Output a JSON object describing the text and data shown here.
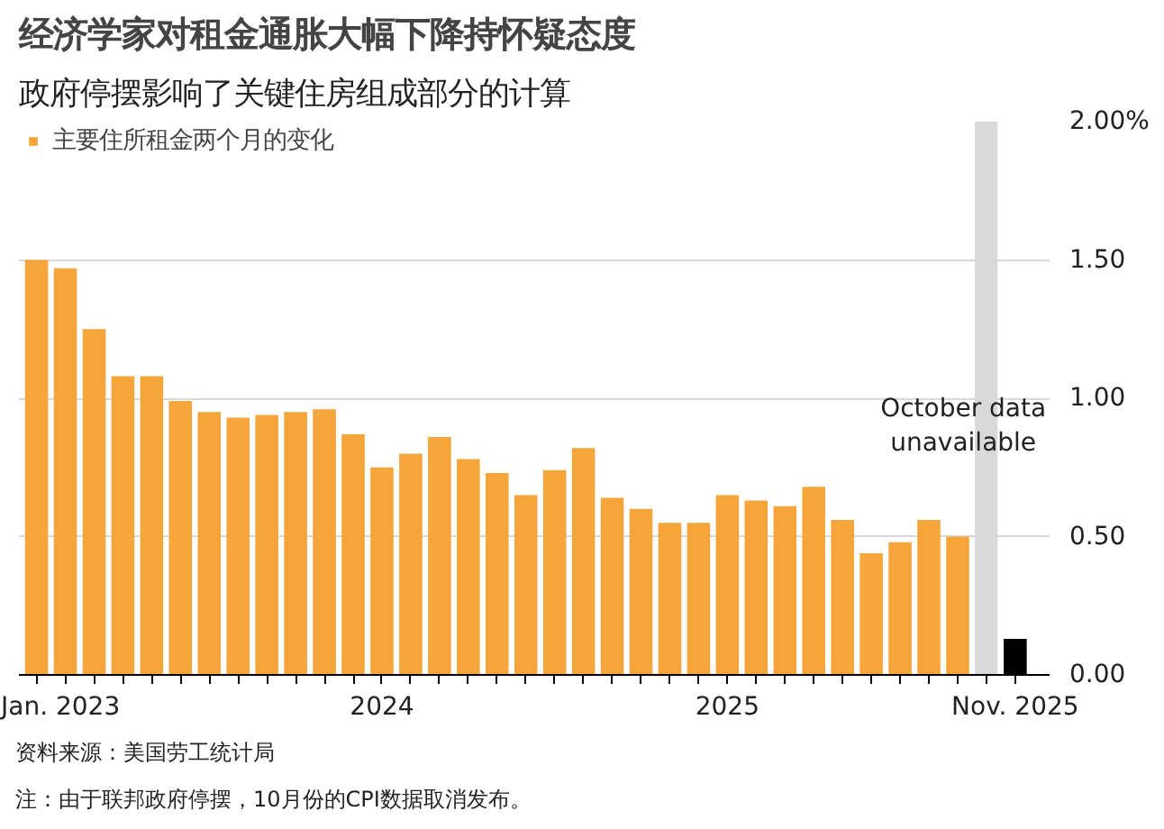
{
  "chart_data": {
    "type": "bar",
    "title": "经济学家对租金通胀大幅下降持怀疑态度",
    "subtitle": "政府停摆影响了关键住房组成部分的计算",
    "x": [
      "2023-01",
      "2023-02",
      "2023-03",
      "2023-04",
      "2023-05",
      "2023-06",
      "2023-07",
      "2023-08",
      "2023-09",
      "2023-10",
      "2023-11",
      "2023-12",
      "2024-01",
      "2024-02",
      "2024-03",
      "2024-04",
      "2024-05",
      "2024-06",
      "2024-07",
      "2024-08",
      "2024-09",
      "2024-10",
      "2024-11",
      "2024-12",
      "2025-01",
      "2025-02",
      "2025-03",
      "2025-04",
      "2025-05",
      "2025-06",
      "2025-07",
      "2025-08",
      "2025-09",
      "2025-10",
      "2025-11"
    ],
    "series": [
      {
        "name": "主要住所租金两个月的变化",
        "color": "#f5a53a",
        "values": [
          1.5,
          1.47,
          1.25,
          1.08,
          1.08,
          0.99,
          0.95,
          0.93,
          0.94,
          0.95,
          0.96,
          0.87,
          0.75,
          0.8,
          0.86,
          0.78,
          0.73,
          0.65,
          0.74,
          0.82,
          0.64,
          0.6,
          0.55,
          0.55,
          0.65,
          0.63,
          0.61,
          0.68,
          0.56,
          0.44,
          0.48,
          0.56,
          0.5,
          null,
          0.13
        ],
        "colors": [
          "#f5a53a",
          "#f5a53a",
          "#f5a53a",
          "#f5a53a",
          "#f5a53a",
          "#f5a53a",
          "#f5a53a",
          "#f5a53a",
          "#f5a53a",
          "#f5a53a",
          "#f5a53a",
          "#f5a53a",
          "#f5a53a",
          "#f5a53a",
          "#f5a53a",
          "#f5a53a",
          "#f5a53a",
          "#f5a53a",
          "#f5a53a",
          "#f5a53a",
          "#f5a53a",
          "#f5a53a",
          "#f5a53a",
          "#f5a53a",
          "#f5a53a",
          "#f5a53a",
          "#f5a53a",
          "#f5a53a",
          "#f5a53a",
          "#f5a53a",
          "#f5a53a",
          "#f5a53a",
          "#f5a53a",
          "#f5a53a",
          "#000000"
        ]
      }
    ],
    "ylim": [
      0,
      2.0
    ],
    "yticks": [
      {
        "value": 0,
        "label": "0.00"
      },
      {
        "value": 0.5,
        "label": "0.50"
      },
      {
        "value": 1.0,
        "label": "1.00"
      },
      {
        "value": 1.5,
        "label": "1.50"
      },
      {
        "value": 2.0,
        "label": "2.00%"
      }
    ],
    "xticks": [
      {
        "value": "2023-01",
        "label": "Jan. 2023"
      },
      {
        "value": "2023-02",
        "label": null
      },
      {
        "value": "2023-03",
        "label": null
      },
      {
        "value": "2023-04",
        "label": null
      },
      {
        "value": "2023-05",
        "label": null
      },
      {
        "value": "2023-06",
        "label": null
      },
      {
        "value": "2023-07",
        "label": null
      },
      {
        "value": "2023-08",
        "label": null
      },
      {
        "value": "2023-09",
        "label": null
      },
      {
        "value": "2023-10",
        "label": null
      },
      {
        "value": "2023-11",
        "label": null
      },
      {
        "value": "2023-12",
        "label": null
      },
      {
        "value": "2024-01",
        "label": "2024"
      },
      {
        "value": "2024-02",
        "label": null
      },
      {
        "value": "2024-03",
        "label": null
      },
      {
        "value": "2024-04",
        "label": null
      },
      {
        "value": "2024-05",
        "label": null
      },
      {
        "value": "2024-06",
        "label": null
      },
      {
        "value": "2024-07",
        "label": null
      },
      {
        "value": "2024-08",
        "label": null
      },
      {
        "value": "2024-09",
        "label": null
      },
      {
        "value": "2024-10",
        "label": null
      },
      {
        "value": "2024-11",
        "label": null
      },
      {
        "value": "2024-12",
        "label": null
      },
      {
        "value": "2025-01",
        "label": "2025"
      },
      {
        "value": "2025-02",
        "label": null
      },
      {
        "value": "2025-03",
        "label": null
      },
      {
        "value": "2025-04",
        "label": null
      },
      {
        "value": "2025-05",
        "label": null
      },
      {
        "value": "2025-06",
        "label": null
      },
      {
        "value": "2025-07",
        "label": null
      },
      {
        "value": "2025-08",
        "label": null
      },
      {
        "value": "2025-09",
        "label": null
      },
      {
        "value": "2025-10",
        "label": null
      },
      {
        "value": "2025-11",
        "label": "Nov. 2025"
      }
    ],
    "xlim": [
      "2022-12-13",
      "2025-12-07"
    ],
    "bands": [
      {
        "axis": "x",
        "from": "2025-09-19",
        "to": "2025-10-13",
        "label": "October data\nunavailable",
        "color": "#d9d9d9"
      }
    ],
    "grid": "y",
    "legend": "top left",
    "annotations": [
      "资料来源：美国劳工统计局",
      "注：由于联邦政府停摆，10月份的CPI数据取消发布。"
    ]
  }
}
